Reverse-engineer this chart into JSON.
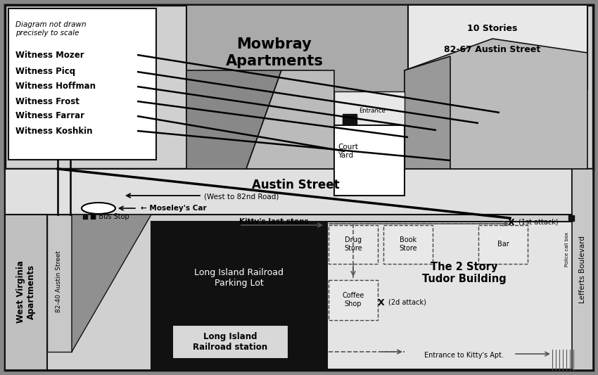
{
  "witnesses": [
    "Witness Mozer",
    "Witness Picq",
    "Witness Hoffman",
    "Witness Frost",
    "Witness Farrar",
    "Witness Koshkin"
  ],
  "note_text": "Diagram not drawn\nprecisely to scale",
  "mowbray_label": "Mowbray\nApartments",
  "stories_label": "10 Stories\n\n82-67 Austin Street",
  "courtyard_label": "Court\nYard",
  "entrance_label": "Entrance",
  "austin_street_label": "Austin Street",
  "austin_sub_label": "(West to 82nd Road)",
  "moseley_label": "← Moseley's Car",
  "bus_stop_label": "■ Bus Stop",
  "kittys_steps_label": "Kitty's last steps",
  "lirr_parking_label": "Long Island Railroad\nParking Lot",
  "lirr_station_label": "Long Island\nRailroad station",
  "tudor_label": "The 2 Story\nTudor Building",
  "west_va_label": "West Virginia\nApartments",
  "street_label": "82-40 Austin Street",
  "lefferts_label": "Lefferts Boulevard",
  "drug_store_label": "Drug\nStore",
  "book_store_label": "Book\nStore",
  "bar_label": "Bar",
  "coffee_shop_label": "Coffee\nShop",
  "attack1_label": "X (1st attack)",
  "attack2_label": "X (2d attack)",
  "entrance_apt_label": "Entrance to Kitty's Apt.",
  "police_box_label": "Police call box"
}
